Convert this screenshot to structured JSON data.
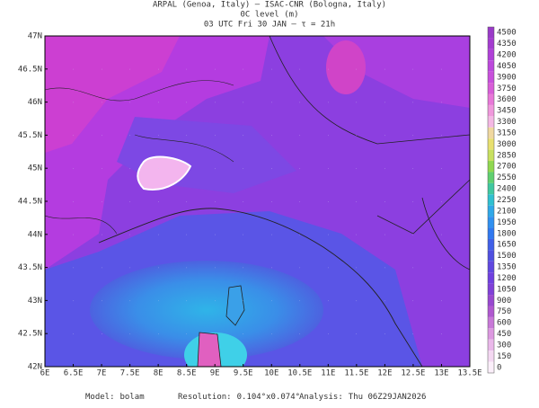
{
  "header": {
    "lines": [
      "ARPAL (Genoa, Italy)  —  ISAC-CNR (Bologna, Italy)",
      "0C level (m)",
      "03 UTC Fri 30 JAN  —  τ = 21h"
    ]
  },
  "axes": {
    "lat_labels": [
      "47N",
      "46.5N",
      "46N",
      "45.5N",
      "45N",
      "44.5N",
      "44N",
      "43.5N",
      "43N",
      "42.5N",
      "42N"
    ],
    "lon_labels": [
      "6E",
      "6.5E",
      "7E",
      "7.5E",
      "8E",
      "8.5E",
      "9E",
      "9.5E",
      "10E",
      "10.5E",
      "11E",
      "11.5E",
      "12E",
      "12.5E",
      "13E",
      "13.5E"
    ]
  },
  "colorbar": {
    "labels": [
      4500,
      4350,
      4200,
      4050,
      3900,
      3750,
      3600,
      3450,
      3300,
      3150,
      3000,
      2850,
      2700,
      2550,
      2400,
      2250,
      2100,
      1950,
      1800,
      1650,
      1500,
      1350,
      1200,
      1050,
      900,
      750,
      600,
      450,
      300,
      150,
      0
    ]
  },
  "footer": {
    "items": [
      {
        "key": "Model:",
        "value": "bolam"
      },
      {
        "key": "Resolution:",
        "value": "0.104°x0.074°"
      },
      {
        "key": "Analysis:",
        "value": "Thu 06Z29JAN2026"
      }
    ]
  }
}
